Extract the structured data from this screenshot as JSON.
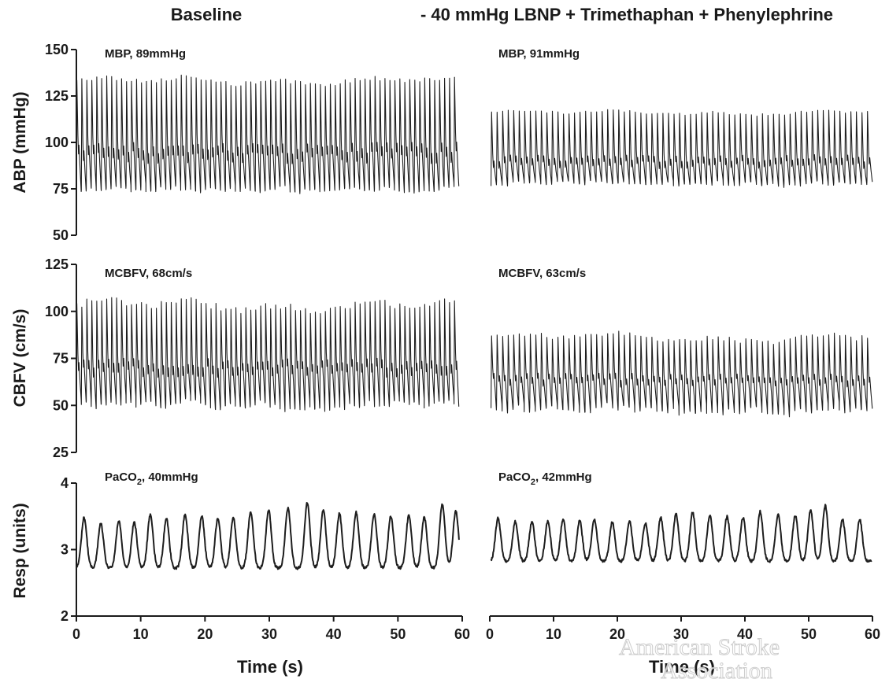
{
  "column_titles": [
    "Baseline",
    "- 40 mmHg LBNP + Trimethaphan + Phenylephrine"
  ],
  "xlabel": "Time (s)",
  "watermark": {
    "line1": "American Stroke",
    "line2": "Association"
  },
  "colors": {
    "trace": "#1e1e1e",
    "axis": "#1a1a1a",
    "watermark_stroke": "#c8c8c8"
  },
  "chart_data": [
    {
      "type": "line",
      "row": "ABP",
      "column": "Baseline",
      "ylabel": "ABP (mmHg)",
      "annotation": "MBP, 89mmHg",
      "xlim": [
        0,
        60
      ],
      "ylim": [
        50,
        150
      ],
      "xticks": [
        0,
        10,
        20,
        30,
        40,
        50,
        60
      ],
      "yticks": [
        50,
        75,
        100,
        125,
        150
      ],
      "waveform": {
        "kind": "pulse",
        "beats": 77,
        "peak_mean": 133,
        "peak_var": 2.5,
        "trough_mean": 75,
        "trough_var": 2,
        "notch": 92,
        "xrange": [
          0,
          59.5
        ]
      },
      "summary": {
        "mean": 89,
        "systolic_approx": 133,
        "diastolic_approx": 75
      }
    },
    {
      "type": "line",
      "row": "ABP",
      "column": "- 40 mmHg LBNP + Trimethaphan + Phenylephrine",
      "ylabel": "ABP (mmHg)",
      "annotation": "MBP, 91mmHg",
      "xlim": [
        0,
        60
      ],
      "ylim": [
        50,
        150
      ],
      "xticks": [
        0,
        10,
        20,
        30,
        40,
        50,
        60
      ],
      "yticks": [],
      "waveform": {
        "kind": "pulse",
        "beats": 69,
        "peak_mean": 116,
        "peak_var": 1.5,
        "trough_mean": 78,
        "trough_var": 1.5,
        "notch": 88,
        "xrange": [
          0.2,
          60
        ]
      },
      "summary": {
        "mean": 91,
        "systolic_approx": 116,
        "diastolic_approx": 78
      }
    },
    {
      "type": "line",
      "row": "CBFV",
      "column": "Baseline",
      "ylabel": "CBFV (cm/s)",
      "annotation": "MCBFV, 68cm/s",
      "xlim": [
        0,
        60
      ],
      "ylim": [
        25,
        125
      ],
      "xticks": [
        0,
        10,
        20,
        30,
        40,
        50,
        60
      ],
      "yticks": [
        25,
        50,
        75,
        100,
        125
      ],
      "waveform": {
        "kind": "pulse",
        "beats": 77,
        "peak_mean": 103,
        "peak_var": 4,
        "trough_mean": 51,
        "trough_var": 3,
        "notch": 68,
        "xrange": [
          0,
          59.5
        ]
      },
      "summary": {
        "mean": 68,
        "systolic_approx": 103,
        "diastolic_approx": 51
      }
    },
    {
      "type": "line",
      "row": "CBFV",
      "column": "- 40 mmHg LBNP + Trimethaphan + Phenylephrine",
      "ylabel": "CBFV (cm/s)",
      "annotation": "MCBFV, 63cm/s",
      "xlim": [
        0,
        60
      ],
      "ylim": [
        25,
        125
      ],
      "xticks": [
        0,
        10,
        20,
        30,
        40,
        50,
        60
      ],
      "yticks": [],
      "waveform": {
        "kind": "pulse",
        "beats": 69,
        "peak_mean": 86,
        "peak_var": 3,
        "trough_mean": 48,
        "trough_var": 2.5,
        "notch": 62,
        "xrange": [
          0.2,
          60
        ]
      },
      "summary": {
        "mean": 63,
        "systolic_approx": 86,
        "diastolic_approx": 48
      }
    },
    {
      "type": "line",
      "row": "Resp",
      "column": "Baseline",
      "ylabel": "Resp (units)",
      "annotation": {
        "pre": "PaCO",
        "sub": "2",
        "post": ", 40mmHg"
      },
      "xlim": [
        0,
        60
      ],
      "ylim": [
        2,
        4
      ],
      "xticks": [
        0,
        10,
        20,
        30,
        40,
        50,
        60
      ],
      "yticks": [
        2,
        3,
        4
      ],
      "waveform": {
        "kind": "resp",
        "peaks_x": [
          1.2,
          3.8,
          6.6,
          9.0,
          11.5,
          14.0,
          16.9,
          19.5,
          22.0,
          24.4,
          27.1,
          29.9,
          32.9,
          35.9,
          38.4,
          40.9,
          43.5,
          46.3,
          48.9,
          51.7,
          54.1,
          56.9,
          59.0
        ],
        "peaks_y": [
          3.48,
          3.39,
          3.43,
          3.41,
          3.53,
          3.47,
          3.53,
          3.5,
          3.47,
          3.48,
          3.57,
          3.59,
          3.63,
          3.7,
          3.59,
          3.54,
          3.56,
          3.54,
          3.5,
          3.51,
          3.48,
          3.69,
          3.58
        ],
        "trough": 2.72,
        "xrange": [
          0,
          59.5
        ]
      }
    },
    {
      "type": "line",
      "row": "Resp",
      "column": "- 40 mmHg LBNP + Trimethaphan + Phenylephrine",
      "ylabel": "Resp (units)",
      "annotation": {
        "pre": "PaCO",
        "sub": "2",
        "post": ", 42mmHg"
      },
      "xlim": [
        0,
        60
      ],
      "ylim": [
        2,
        4
      ],
      "xticks": [
        0,
        10,
        20,
        30,
        40,
        50,
        60
      ],
      "yticks": [],
      "waveform": {
        "kind": "resp",
        "peaks_x": [
          1.3,
          4.0,
          6.6,
          9.1,
          11.5,
          14.1,
          16.4,
          19.2,
          21.9,
          24.4,
          26.8,
          29.2,
          31.8,
          34.5,
          37.2,
          39.7,
          42.4,
          45.2,
          47.9,
          50.3,
          52.6,
          55.3,
          58.0
        ],
        "peaks_y": [
          3.47,
          3.42,
          3.42,
          3.42,
          3.46,
          3.43,
          3.46,
          3.41,
          3.43,
          3.4,
          3.48,
          3.53,
          3.56,
          3.52,
          3.5,
          3.48,
          3.57,
          3.52,
          3.51,
          3.59,
          3.66,
          3.45,
          3.45
        ],
        "trough": 2.82,
        "xrange": [
          0.2,
          59.9
        ]
      }
    }
  ]
}
